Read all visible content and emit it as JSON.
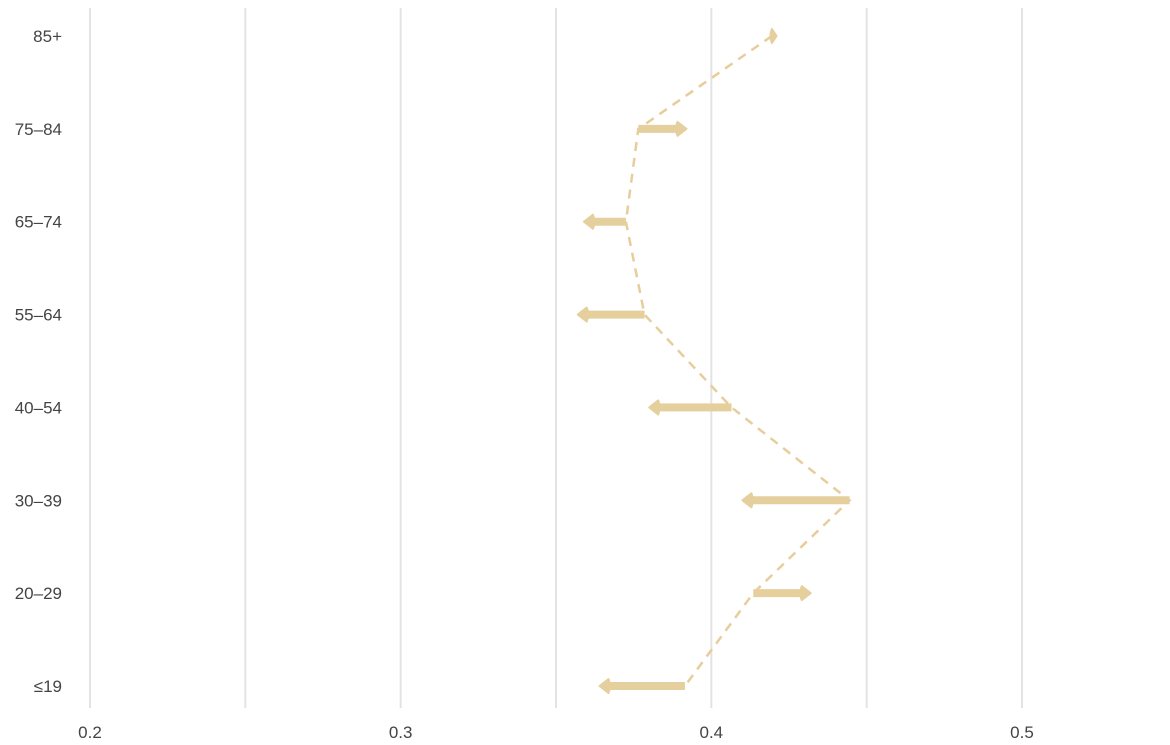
{
  "chart_data": {
    "type": "arrow",
    "title": "",
    "xlabel": "",
    "ylabel": "",
    "xlim": [
      0.2,
      0.5
    ],
    "x_ticks": [
      0.2,
      0.25,
      0.3,
      0.35,
      0.4,
      0.45,
      0.5
    ],
    "x_tick_labels": [
      "0.2",
      "",
      "0.3",
      "",
      "0.4",
      "",
      "0.5"
    ],
    "grid": true,
    "colors": {
      "arrow": "#e5cf9d",
      "connector": "#e8cd9c",
      "grid": "#e3e3e3",
      "text": "#444444"
    },
    "categories": [
      "85+",
      "75–84",
      "65–74",
      "55–64",
      "40–54",
      "30–39",
      "20–29",
      "≤19"
    ],
    "start": [
      0.4195,
      0.3765,
      0.3725,
      0.3785,
      0.4065,
      0.4445,
      0.4135,
      0.3915
    ],
    "end": [
      0.421,
      0.392,
      0.359,
      0.357,
      0.38,
      0.41,
      0.432,
      0.364
    ],
    "connector": "dashed line through start values"
  }
}
